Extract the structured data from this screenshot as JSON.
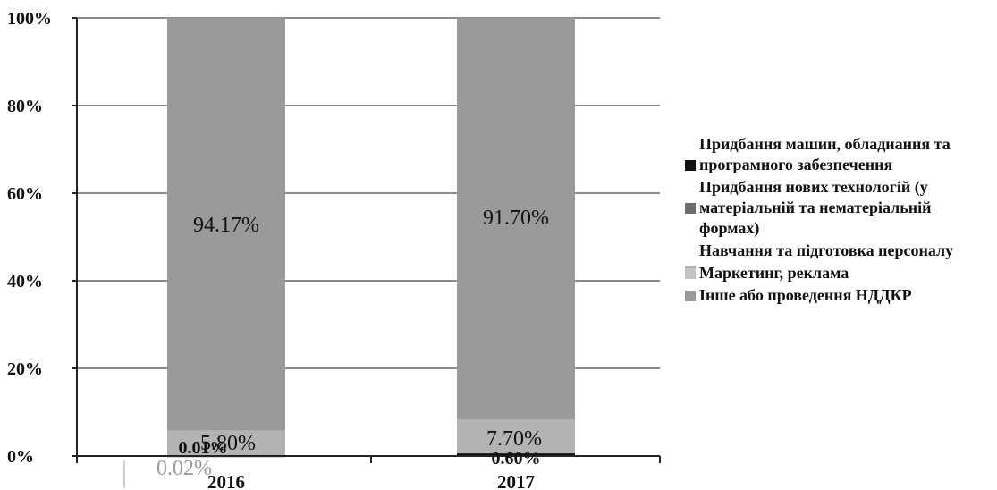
{
  "chart_data": {
    "type": "bar",
    "stacked": true,
    "categories": [
      "2016",
      "2017"
    ],
    "ylim": [
      0,
      100
    ],
    "yticks": [
      "0%",
      "20%",
      "40%",
      "60%",
      "80%",
      "100%"
    ],
    "grid": true,
    "legend_position": "right",
    "series": [
      {
        "name": "Придбання машин, обладнання та програмного забезпечення",
        "values": [
          0.01,
          0.6
        ],
        "labels": [
          "0.01%",
          "0.60%"
        ],
        "color": "#111111"
      },
      {
        "name": "Придбання нових технологій (у матеріальній та нематеріальній формах)",
        "values": [
          0.02,
          0.0
        ],
        "labels": [
          "0.02%",
          ""
        ],
        "color": "#6e6e6e"
      },
      {
        "name": "Навчання та підготовка персоналу",
        "values": [
          5.8,
          7.7
        ],
        "labels": [
          "5.80%",
          "7.70%"
        ],
        "color": "#b3b3b3"
      },
      {
        "name": "Маркетинг, реклама",
        "values": [
          0.0,
          0.0
        ],
        "labels": [
          "",
          ""
        ],
        "color": "#c4c4c4"
      },
      {
        "name": "Інше або проведення НДДКР",
        "values": [
          94.17,
          91.7
        ],
        "labels": [
          "94.17%",
          "91.70%"
        ],
        "color": "#9a9a9a"
      }
    ]
  }
}
